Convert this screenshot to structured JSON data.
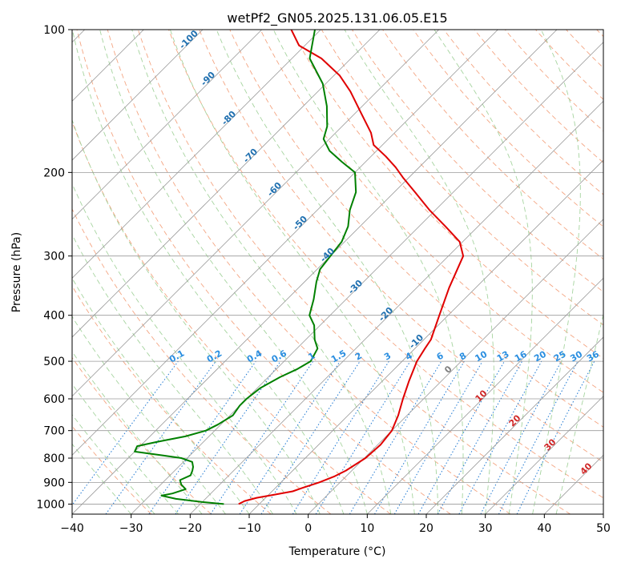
{
  "chart_data": {
    "type": "line",
    "title": "wetPf2_GN05.2025.131.06.05.E15",
    "xlabel": "Temperature (°C)",
    "ylabel": "Pressure (hPa)",
    "xlim": [
      -40,
      50
    ],
    "ylim": [
      1050,
      100
    ],
    "y_scale": "log",
    "skew": 45,
    "grid": true,
    "x_ticks": [
      -40,
      -30,
      -20,
      -10,
      0,
      10,
      20,
      30,
      40,
      50
    ],
    "y_ticks": [
      100,
      200,
      300,
      400,
      500,
      600,
      700,
      800,
      900,
      1000
    ],
    "series": [
      {
        "role": "temperature",
        "color": "#e00000",
        "points": [
          [
            1000,
            -13.5
          ],
          [
            985,
            -13.0
          ],
          [
            970,
            -11.5
          ],
          [
            955,
            -9.0
          ],
          [
            940,
            -6.5
          ],
          [
            925,
            -5.5
          ],
          [
            900,
            -3.5
          ],
          [
            875,
            -2.0
          ],
          [
            850,
            -1.0
          ],
          [
            800,
            0.2
          ],
          [
            750,
            0.5
          ],
          [
            700,
            0.0
          ],
          [
            650,
            -1.5
          ],
          [
            600,
            -3.5
          ],
          [
            550,
            -5.5
          ],
          [
            500,
            -7.5
          ],
          [
            470,
            -8.3
          ],
          [
            450,
            -8.8
          ],
          [
            400,
            -11.5
          ],
          [
            350,
            -14.5
          ],
          [
            300,
            -17.5
          ],
          [
            280,
            -20.5
          ],
          [
            260,
            -25.5
          ],
          [
            240,
            -31.0
          ],
          [
            220,
            -36.5
          ],
          [
            205,
            -41.0
          ],
          [
            195,
            -44.0
          ],
          [
            185,
            -47.5
          ],
          [
            175,
            -51.5
          ],
          [
            165,
            -54.0
          ],
          [
            150,
            -59.0
          ],
          [
            135,
            -64.5
          ],
          [
            125,
            -69.0
          ],
          [
            115,
            -75.0
          ],
          [
            108,
            -81.0
          ],
          [
            100,
            -85.0
          ]
        ]
      },
      {
        "role": "dewpoint",
        "color": "#008000",
        "points": [
          [
            1000,
            -16.0
          ],
          [
            990,
            -20.0
          ],
          [
            975,
            -25.0
          ],
          [
            960,
            -28.0
          ],
          [
            950,
            -26.5
          ],
          [
            930,
            -25.0
          ],
          [
            910,
            -26.5
          ],
          [
            890,
            -27.5
          ],
          [
            870,
            -26.5
          ],
          [
            850,
            -27.0
          ],
          [
            835,
            -27.5
          ],
          [
            815,
            -28.5
          ],
          [
            800,
            -31.0
          ],
          [
            790,
            -34.5
          ],
          [
            775,
            -40.0
          ],
          [
            755,
            -40.5
          ],
          [
            740,
            -38.0
          ],
          [
            720,
            -34.0
          ],
          [
            700,
            -31.5
          ],
          [
            680,
            -30.5
          ],
          [
            650,
            -29.5
          ],
          [
            620,
            -30.0
          ],
          [
            600,
            -30.0
          ],
          [
            570,
            -29.5
          ],
          [
            540,
            -28.0
          ],
          [
            520,
            -26.5
          ],
          [
            500,
            -25.5
          ],
          [
            470,
            -26.5
          ],
          [
            450,
            -28.5
          ],
          [
            420,
            -31.0
          ],
          [
            400,
            -33.5
          ],
          [
            370,
            -35.5
          ],
          [
            340,
            -38.0
          ],
          [
            320,
            -39.5
          ],
          [
            300,
            -40.0
          ],
          [
            280,
            -40.5
          ],
          [
            260,
            -42.0
          ],
          [
            240,
            -44.5
          ],
          [
            220,
            -46.5
          ],
          [
            200,
            -50.0
          ],
          [
            190,
            -54.0
          ],
          [
            180,
            -58.0
          ],
          [
            170,
            -61.0
          ],
          [
            160,
            -62.5
          ],
          [
            145,
            -66.0
          ],
          [
            130,
            -70.5
          ],
          [
            115,
            -77.0
          ],
          [
            100,
            -81.0
          ]
        ]
      }
    ],
    "dry_adiabat_labels": [
      -100,
      -90,
      -80,
      -70,
      -60,
      -50,
      -40,
      -30,
      -20,
      -10,
      0,
      10,
      20,
      30,
      40
    ],
    "mixing_ratio_labels": [
      "0.1",
      "0.2",
      "0.4",
      "0.6",
      "1",
      "1.5",
      "2",
      "3",
      "4",
      "6",
      "8",
      "10",
      "13",
      "16",
      "20",
      "25",
      "30",
      "36"
    ],
    "colors": {
      "temperature": "#e00000",
      "dewpoint": "#008000",
      "isotherm": "#9a9a9a",
      "isobar": "#9a9a9a",
      "dry_adiabat": "#f4a582",
      "moist_adiabat": "#a6d49f",
      "mixing_ratio": "#1e78d2",
      "label_cold": "#2070b0",
      "label_warm": "#d02828",
      "label_zero": "#808080",
      "label_mixing": "#2a8ee0",
      "dcape": "#d8c2a0"
    }
  }
}
